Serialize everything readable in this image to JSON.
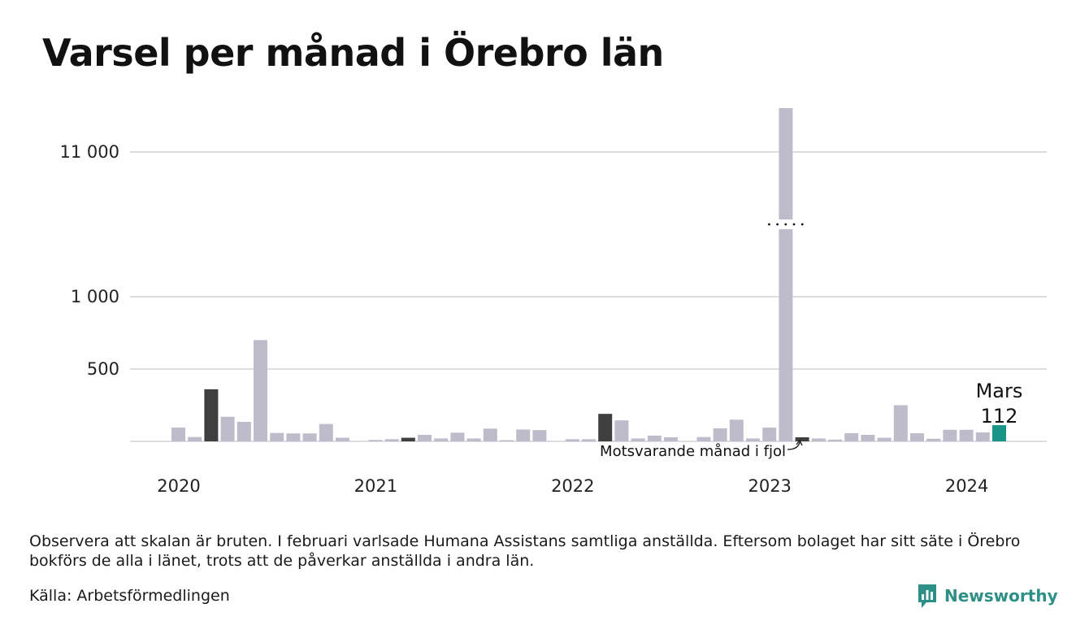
{
  "title": "Varsel per månad i Örebro län",
  "note": "Observera att skalan är bruten. I februari varlsade Humana Assistans samtliga anställda. Eftersom bolaget har sitt säte i Örebro bokförs de alla i länet, trots att de påverkar anställda i andra län.",
  "source": "Källa: Arbetsförmedlingen",
  "brand": {
    "name": "Newsworthy",
    "icon": "newsworthy-logo-icon",
    "color": "#2e8f87"
  },
  "chart_data": {
    "type": "bar",
    "title": "Varsel per månad i Örebro län",
    "xlabel": "",
    "ylabel": "",
    "axis_break": true,
    "grid": true,
    "y_ticks": [
      {
        "value": 500,
        "label": "500"
      },
      {
        "value": 1000,
        "label": "1 000"
      },
      {
        "value": 11000,
        "label": "11 000"
      }
    ],
    "x_ticks": [
      {
        "label": "2020",
        "index": 0
      },
      {
        "label": "2021",
        "index": 12
      },
      {
        "label": "2022",
        "index": 24
      },
      {
        "label": "2023",
        "index": 36
      },
      {
        "label": "2024",
        "index": 48
      }
    ],
    "categories": [
      "2020-01",
      "2020-02",
      "2020-03",
      "2020-04",
      "2020-05",
      "2020-06",
      "2020-07",
      "2020-08",
      "2020-09",
      "2020-10",
      "2020-11",
      "2020-12",
      "2021-01",
      "2021-02",
      "2021-03",
      "2021-04",
      "2021-05",
      "2021-06",
      "2021-07",
      "2021-08",
      "2021-09",
      "2021-10",
      "2021-11",
      "2021-12",
      "2022-01",
      "2022-02",
      "2022-03",
      "2022-04",
      "2022-05",
      "2022-06",
      "2022-07",
      "2022-08",
      "2022-09",
      "2022-10",
      "2022-11",
      "2022-12",
      "2023-01",
      "2023-02",
      "2023-03",
      "2023-04",
      "2023-05",
      "2023-06",
      "2023-07",
      "2023-08",
      "2023-09",
      "2023-10",
      "2023-11",
      "2023-12",
      "2024-01",
      "2024-02",
      "2024-03"
    ],
    "values": [
      95,
      30,
      360,
      170,
      135,
      700,
      58,
      55,
      55,
      120,
      25,
      0,
      10,
      15,
      25,
      45,
      20,
      60,
      20,
      88,
      5,
      82,
      78,
      0,
      15,
      15,
      190,
      145,
      20,
      40,
      28,
      0,
      30,
      90,
      150,
      20,
      95,
      11850,
      28,
      20,
      12,
      57,
      45,
      25,
      250,
      56,
      18,
      80,
      80,
      62,
      112
    ],
    "highlight": {
      "current": {
        "index": 50,
        "color": "#1b9488",
        "label": "Mars",
        "value_label": "112"
      },
      "same_month_previous_years": {
        "indices": [
          2,
          14,
          26,
          38
        ],
        "color": "#3f3f3f"
      },
      "annotation": "Motsvarande månad i fjol"
    },
    "colors": {
      "default_bar": "#bebcca",
      "grid": "#dedde2",
      "baseline": "#dedde2"
    }
  }
}
